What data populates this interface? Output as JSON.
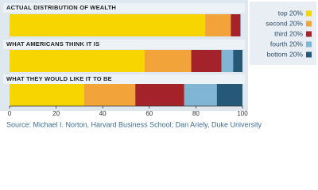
{
  "chart_data": {
    "type": "stacked-bar-horizontal",
    "categories": [
      "ACTUAL DISTRIBUTION OF WEALTH",
      "WHAT AMERICANS THINK IT IS",
      "WHAT THEY WOULD LIKE IT TO BE"
    ],
    "series": [
      {
        "name": "top 20%",
        "color": "#f6d500",
        "values": [
          84,
          58,
          32
        ]
      },
      {
        "name": "second 20%",
        "color": "#f2a33a",
        "values": [
          11,
          20,
          22
        ]
      },
      {
        "name": "third 20%",
        "color": "#a4232a",
        "values": [
          4,
          13,
          21
        ]
      },
      {
        "name": "fourth 20%",
        "color": "#80b6d3",
        "values": [
          0.2,
          5,
          14
        ]
      },
      {
        "name": "bottom 20%",
        "color": "#265878",
        "values": [
          0.1,
          4,
          11
        ]
      }
    ],
    "xlim": [
      0,
      100
    ],
    "xticks": [
      0,
      20,
      40,
      60,
      80,
      100
    ],
    "legend": "right",
    "source": "Source: Michael I. Norton, Harvard Business School; Dan Ariely, Duke University"
  }
}
